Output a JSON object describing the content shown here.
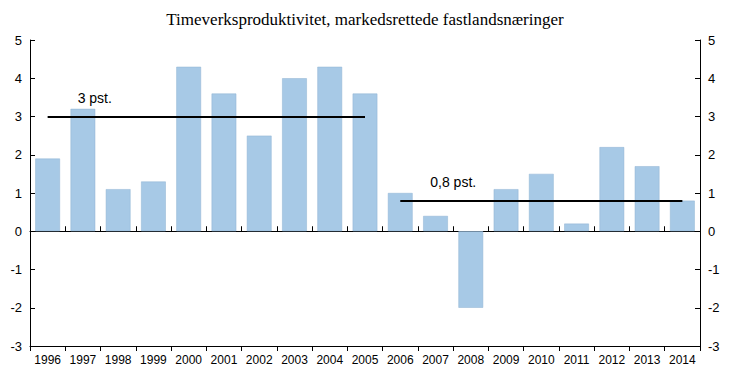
{
  "chart_data": {
    "type": "bar",
    "title": "Timeverksproduktivitet, markedsrettede fastlandsnæringer",
    "categories": [
      "1996",
      "1997",
      "1998",
      "1999",
      "2000",
      "2001",
      "2002",
      "2003",
      "2004",
      "2005",
      "2006",
      "2007",
      "2008",
      "2009",
      "2010",
      "2011",
      "2012",
      "2013",
      "2014"
    ],
    "values": [
      1.9,
      3.2,
      1.1,
      1.3,
      4.3,
      3.6,
      2.5,
      4.0,
      4.3,
      3.6,
      1.0,
      0.4,
      -2.0,
      1.1,
      1.5,
      0.2,
      2.2,
      1.7,
      0.8
    ],
    "color": "#a7c9e6",
    "ylim": [
      -3,
      5
    ],
    "yticks": [
      -3,
      -2,
      -1,
      0,
      1,
      2,
      3,
      4,
      5
    ],
    "y2lim": [
      -3,
      5
    ],
    "y2ticks": [
      -3,
      -2,
      -1,
      0,
      1,
      2,
      3,
      4,
      5
    ],
    "grid": false,
    "annotations": [
      {
        "text": "3 pst.",
        "value": 3,
        "start": "1996",
        "end": "2005"
      },
      {
        "text": "0,8 pst.",
        "value": 0.8,
        "start": "2006",
        "end": "2014"
      }
    ]
  }
}
